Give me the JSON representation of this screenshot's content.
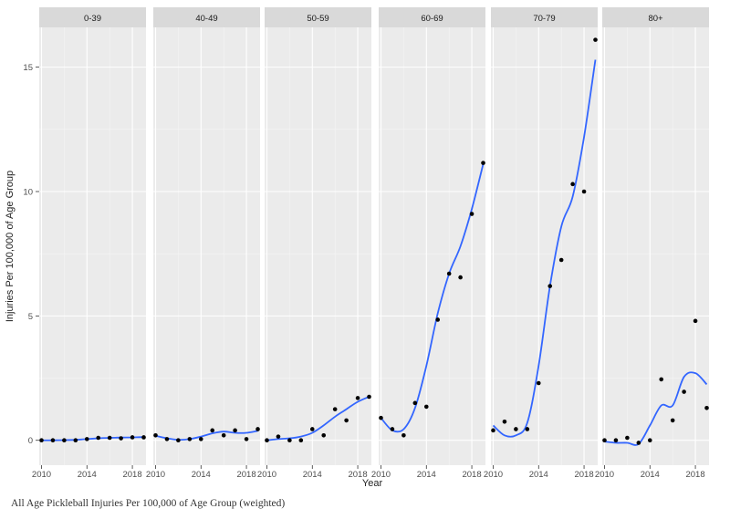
{
  "chart_data": {
    "type": "scatter",
    "ylabel": "Injuries Per 100,000 of Age Group",
    "xlabel": "Year",
    "xlim": [
      2009.8,
      2019.2
    ],
    "ylim": [
      -1,
      16.6
    ],
    "x_ticks": [
      2010,
      2014,
      2018
    ],
    "y_ticks": [
      0,
      5,
      10,
      15
    ],
    "grid": true,
    "smoother": "loess",
    "colors": {
      "panel_bg": "#ebebeb",
      "strip_bg": "#d9d9d9",
      "grid_major": "#ffffff",
      "point": "#000000",
      "smooth_line": "#3366ff"
    },
    "facets": [
      {
        "label": "0-39",
        "x": [
          2010,
          2011,
          2012,
          2013,
          2014,
          2015,
          2016,
          2017,
          2018,
          2019
        ],
        "y": [
          0.0,
          0.0,
          0.0,
          0.0,
          0.05,
          0.1,
          0.1,
          0.08,
          0.12,
          0.12
        ],
        "smooth": [
          0.0,
          0.0,
          0.01,
          0.02,
          0.05,
          0.08,
          0.1,
          0.11,
          0.12,
          0.13
        ]
      },
      {
        "label": "40-49",
        "x": [
          2010,
          2011,
          2012,
          2013,
          2014,
          2015,
          2016,
          2017,
          2018,
          2019
        ],
        "y": [
          0.2,
          0.05,
          0.0,
          0.05,
          0.05,
          0.4,
          0.2,
          0.4,
          0.05,
          0.45
        ],
        "smooth": [
          0.18,
          0.08,
          0.02,
          0.05,
          0.15,
          0.28,
          0.35,
          0.3,
          0.3,
          0.38
        ]
      },
      {
        "label": "50-59",
        "x": [
          2010,
          2011,
          2012,
          2013,
          2014,
          2015,
          2016,
          2017,
          2018,
          2019
        ],
        "y": [
          0.0,
          0.15,
          0.0,
          0.0,
          0.45,
          0.2,
          1.25,
          0.8,
          1.7,
          1.75
        ],
        "smooth": [
          0.0,
          0.05,
          0.08,
          0.15,
          0.3,
          0.6,
          0.95,
          1.25,
          1.55,
          1.75
        ]
      },
      {
        "label": "60-69",
        "x": [
          2010,
          2011,
          2012,
          2013,
          2014,
          2015,
          2016,
          2017,
          2018,
          2019
        ],
        "y": [
          0.9,
          0.45,
          0.2,
          1.5,
          1.35,
          4.85,
          6.7,
          6.55,
          9.1,
          11.15
        ],
        "smooth": [
          0.9,
          0.4,
          0.45,
          1.3,
          3.0,
          5.1,
          6.7,
          7.8,
          9.3,
          11.1
        ]
      },
      {
        "label": "70-79",
        "x": [
          2010,
          2011,
          2012,
          2013,
          2014,
          2015,
          2016,
          2017,
          2018,
          2019
        ],
        "y": [
          0.4,
          0.75,
          0.45,
          0.45,
          2.3,
          6.2,
          7.25,
          10.3,
          10.0,
          16.1
        ],
        "smooth": [
          0.6,
          0.2,
          0.2,
          0.7,
          3.0,
          6.2,
          8.6,
          9.8,
          12.2,
          15.3
        ]
      },
      {
        "label": "80+",
        "x": [
          2010,
          2011,
          2012,
          2013,
          2014,
          2015,
          2016,
          2017,
          2018,
          2019
        ],
        "y": [
          0.0,
          0.0,
          0.1,
          -0.1,
          0.0,
          2.45,
          0.8,
          1.95,
          4.8,
          1.3
        ],
        "smooth": [
          -0.05,
          -0.1,
          -0.1,
          -0.15,
          0.6,
          1.4,
          1.4,
          2.55,
          2.7,
          2.25
        ]
      }
    ]
  },
  "caption": "All Age Pickleball Injuries Per 100,000 of Age Group (weighted)"
}
